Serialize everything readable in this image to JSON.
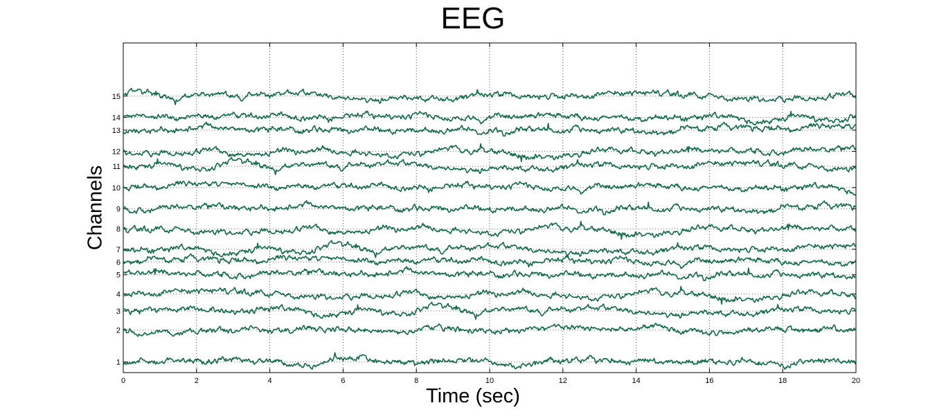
{
  "chart_data": {
    "type": "line",
    "title": "EEG",
    "xlabel": "Time (sec)",
    "ylabel": "Channels",
    "xlim": [
      0,
      20
    ],
    "ylim": [
      0.5,
      16
    ],
    "x_ticks": [
      0,
      2,
      4,
      6,
      8,
      10,
      12,
      14,
      16,
      18,
      20
    ],
    "x_tick_labels": [
      "0",
      "2",
      "4",
      "6",
      "8",
      "10",
      "12",
      "14",
      "16",
      "18",
      "20"
    ],
    "grid": {
      "x": "dotted",
      "y": "dotted"
    },
    "line_color": "#0f6b45",
    "channels": [
      {
        "label": "1",
        "baseline": 1.0
      },
      {
        "label": "2",
        "baseline": 2.5
      },
      {
        "label": "3",
        "baseline": 3.4
      },
      {
        "label": "4",
        "baseline": 4.2
      },
      {
        "label": "5",
        "baseline": 5.1
      },
      {
        "label": "6",
        "baseline": 5.7
      },
      {
        "label": "7",
        "baseline": 6.3
      },
      {
        "label": "8",
        "baseline": 7.25
      },
      {
        "label": "9",
        "baseline": 8.2
      },
      {
        "label": "10",
        "baseline": 9.2
      },
      {
        "label": "11",
        "baseline": 10.2
      },
      {
        "label": "12",
        "baseline": 10.9
      },
      {
        "label": "13",
        "baseline": 11.9
      },
      {
        "label": "14",
        "baseline": 12.5
      },
      {
        "label": "15",
        "baseline": 13.5
      }
    ]
  }
}
